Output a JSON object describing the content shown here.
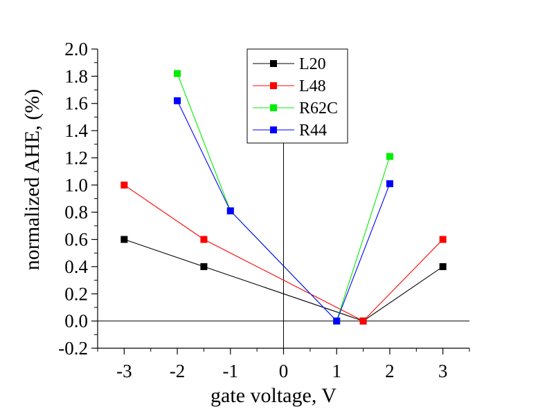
{
  "chart_data": {
    "type": "line",
    "title": "",
    "xlabel": "gate voltage, V",
    "ylabel": "normalized AHE, (%)",
    "xlim": [
      -3.5,
      3.5
    ],
    "ylim": [
      -0.2,
      2.0
    ],
    "xticks": [
      -3,
      -2,
      -1,
      0,
      1,
      2,
      3
    ],
    "xtick_labels": [
      "-3",
      "-2",
      "-1",
      "0",
      "1",
      "2",
      "3"
    ],
    "yticks": [
      -0.2,
      0.0,
      0.2,
      0.4,
      0.6,
      0.8,
      1.0,
      1.2,
      1.4,
      1.6,
      1.8,
      2.0
    ],
    "ytick_labels": [
      "-0.2",
      "0.0",
      "0.2",
      "0.4",
      "0.6",
      "0.8",
      "1.0",
      "1.2",
      "1.4",
      "1.6",
      "1.8",
      "2.0"
    ],
    "grid": false,
    "zero_lines": true,
    "legend_position": "top-center",
    "series": [
      {
        "name": "L20",
        "color": "#000000",
        "x": [
          -3,
          -1.5,
          1.5,
          3
        ],
        "y": [
          0.6,
          0.4,
          0.0,
          0.4
        ]
      },
      {
        "name": "L48",
        "color": "#ff0000",
        "x": [
          -3,
          -1.5,
          1.5,
          3
        ],
        "y": [
          1.0,
          0.6,
          0.0,
          0.6
        ]
      },
      {
        "name": "R62C",
        "color": "#00ee00",
        "x": [
          -2,
          -1,
          1,
          2
        ],
        "y": [
          1.82,
          0.81,
          0.0,
          1.21
        ]
      },
      {
        "name": "R44",
        "color": "#0000ff",
        "x": [
          -2,
          -1,
          1,
          2
        ],
        "y": [
          1.62,
          0.81,
          0.0,
          1.01
        ]
      }
    ]
  }
}
